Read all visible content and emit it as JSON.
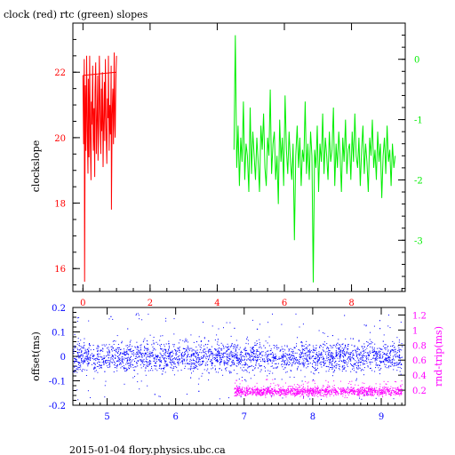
{
  "title": "clock (red) rtc (green) slopes",
  "footer": "2015-01-04 flory.physics.ubc.ca",
  "colors": {
    "clock": "#ff0000",
    "rtc": "#00ee00",
    "offset": "#0000ff",
    "rnd_trip": "#ff00ff",
    "axes": "#000000"
  },
  "chart_data": [
    {
      "type": "line",
      "title": "clock (red) rtc (green) slopes",
      "xlabel": "",
      "ylabel": "clockslope",
      "xlim": [
        -0.3,
        9.6
      ],
      "ylim": [
        15.3,
        23.5
      ],
      "y2lim": [
        -3.85,
        0.6
      ],
      "x_ticks": [
        0,
        2,
        4,
        6,
        8
      ],
      "y_ticks": [
        16,
        18,
        20,
        22
      ],
      "y2_ticks": [
        0,
        -1,
        -2,
        -3
      ],
      "series": [
        {
          "name": "clock",
          "axis": "left",
          "color": "#ff0000",
          "x": [
            0.0,
            0.02,
            0.04,
            0.05,
            0.07,
            0.09,
            0.11,
            0.13,
            0.15,
            0.16,
            0.18,
            0.2,
            0.22,
            0.24,
            0.25,
            0.27,
            0.29,
            0.31,
            0.33,
            0.35,
            0.36,
            0.38,
            0.4,
            0.42,
            0.44,
            0.45,
            0.47,
            0.49,
            0.51,
            0.53,
            0.55,
            0.56,
            0.58,
            0.6,
            0.62,
            0.64,
            0.65,
            0.67,
            0.69,
            0.71,
            0.73,
            0.75,
            0.76,
            0.78,
            0.8,
            0.82,
            0.84,
            0.85,
            0.87,
            0.89,
            0.91,
            0.93,
            0.95,
            0.96,
            0.98,
            1.0
          ],
          "values": [
            21.9,
            19.8,
            22.4,
            15.6,
            21.6,
            19.6,
            22.5,
            20.2,
            18.9,
            21.8,
            19.4,
            22.5,
            20.0,
            18.7,
            21.1,
            20.4,
            22.2,
            19.6,
            20.9,
            18.8,
            21.4,
            22.3,
            19.5,
            20.6,
            21.9,
            19.3,
            20.3,
            22.5,
            20.7,
            19.5,
            21.5,
            20.2,
            22.0,
            19.1,
            20.8,
            21.7,
            19.9,
            22.4,
            20.3,
            19.2,
            21.2,
            20.6,
            22.5,
            19.6,
            21.0,
            20.1,
            22.2,
            17.8,
            20.7,
            21.5,
            19.8,
            22.6,
            20.4,
            20.0,
            21.8,
            22.5
          ]
        },
        {
          "name": "clock-trend",
          "axis": "left",
          "color": "#ff0000",
          "x": [
            0.0,
            1.0
          ],
          "values": [
            21.9,
            22.0
          ]
        },
        {
          "name": "rtc",
          "axis": "right",
          "color": "#00ee00",
          "x": [
            4.5,
            4.54,
            4.58,
            4.62,
            4.66,
            4.7,
            4.74,
            4.78,
            4.82,
            4.86,
            4.9,
            4.94,
            4.98,
            5.02,
            5.06,
            5.1,
            5.14,
            5.18,
            5.22,
            5.26,
            5.3,
            5.34,
            5.38,
            5.42,
            5.46,
            5.5,
            5.54,
            5.58,
            5.62,
            5.66,
            5.7,
            5.74,
            5.78,
            5.82,
            5.86,
            5.9,
            5.94,
            5.98,
            6.02,
            6.06,
            6.1,
            6.14,
            6.18,
            6.22,
            6.26,
            6.3,
            6.34,
            6.38,
            6.42,
            6.46,
            6.5,
            6.54,
            6.58,
            6.62,
            6.66,
            6.7,
            6.74,
            6.78,
            6.82,
            6.86,
            6.9,
            6.94,
            6.98,
            7.02,
            7.06,
            7.1,
            7.14,
            7.18,
            7.22,
            7.26,
            7.3,
            7.34,
            7.38,
            7.42,
            7.46,
            7.5,
            7.54,
            7.58,
            7.62,
            7.66,
            7.7,
            7.74,
            7.78,
            7.82,
            7.86,
            7.9,
            7.94,
            7.98,
            8.02,
            8.06,
            8.1,
            8.14,
            8.18,
            8.22,
            8.26,
            8.3,
            8.34,
            8.38,
            8.42,
            8.46,
            8.5,
            8.54,
            8.58,
            8.62,
            8.66,
            8.7,
            8.74,
            8.78,
            8.82,
            8.86,
            8.9,
            8.94,
            8.98,
            9.02,
            9.06,
            9.1,
            9.14,
            9.18,
            9.22,
            9.26,
            9.3
          ],
          "values": [
            -1.5,
            0.4,
            -1.8,
            -1.1,
            -2.1,
            -1.3,
            -1.7,
            -0.7,
            -2.0,
            -1.4,
            -1.6,
            -2.2,
            -0.8,
            -1.9,
            -1.2,
            -1.6,
            -2.0,
            -1.3,
            -1.7,
            -2.2,
            -1.1,
            -1.5,
            -0.9,
            -1.8,
            -2.1,
            -1.3,
            -1.6,
            -0.5,
            -1.9,
            -1.4,
            -1.2,
            -2.0,
            -1.6,
            -2.4,
            -1.0,
            -1.7,
            -1.3,
            -2.1,
            -0.6,
            -1.5,
            -1.9,
            -1.2,
            -1.7,
            -2.0,
            -1.4,
            -3.0,
            -1.6,
            -1.1,
            -1.8,
            -1.3,
            -2.1,
            -1.5,
            -1.7,
            -0.7,
            -1.9,
            -1.4,
            -2.0,
            -1.2,
            -1.6,
            -3.7,
            -1.5,
            -1.8,
            -1.1,
            -2.2,
            -1.4,
            -1.7,
            -0.9,
            -1.9,
            -1.3,
            -1.6,
            -2.0,
            -1.2,
            -1.7,
            -1.5,
            -0.8,
            -2.1,
            -1.4,
            -1.8,
            -1.2,
            -1.6,
            -2.2,
            -1.3,
            -1.7,
            -1.0,
            -1.9,
            -1.5,
            -1.4,
            -2.0,
            -1.2,
            -1.7,
            -0.9,
            -1.6,
            -1.8,
            -1.3,
            -2.1,
            -1.5,
            -1.1,
            -1.9,
            -1.4,
            -1.7,
            -2.2,
            -1.3,
            -1.6,
            -1.0,
            -1.8,
            -1.5,
            -2.0,
            -1.2,
            -1.7,
            -1.4,
            -2.3,
            -1.6,
            -1.3,
            -1.9,
            -1.1,
            -1.7,
            -1.5,
            -2.1,
            -1.4,
            -1.8,
            -1.6
          ]
        }
      ]
    },
    {
      "type": "scatter",
      "xlabel": "",
      "ylabel": "offset(ms)",
      "y2label": "rnd-trip(ms)",
      "xlim": [
        4.5,
        9.35
      ],
      "ylim": [
        -0.2,
        0.2
      ],
      "y2lim": [
        0.0,
        1.3
      ],
      "x_ticks": [
        5,
        6,
        7,
        8,
        9
      ],
      "y_ticks": [
        0.2,
        0.1,
        0,
        -0.1,
        -0.2
      ],
      "y2_ticks": [
        0.2,
        0.4,
        0.6,
        0.8,
        1,
        1.2
      ],
      "series": [
        {
          "name": "offset",
          "axis": "left",
          "color": "#0000ff",
          "x_range": [
            4.5,
            9.3
          ],
          "center": 0.0,
          "band": 0.03,
          "outlier_range": [
            -0.18,
            0.18
          ]
        },
        {
          "name": "rnd-trip",
          "axis": "right",
          "color": "#ff00ff",
          "x_range": [
            6.85,
            9.3
          ],
          "center": 0.19,
          "band": 0.03,
          "outlier_range": [
            0.15,
            0.35
          ]
        }
      ]
    }
  ]
}
